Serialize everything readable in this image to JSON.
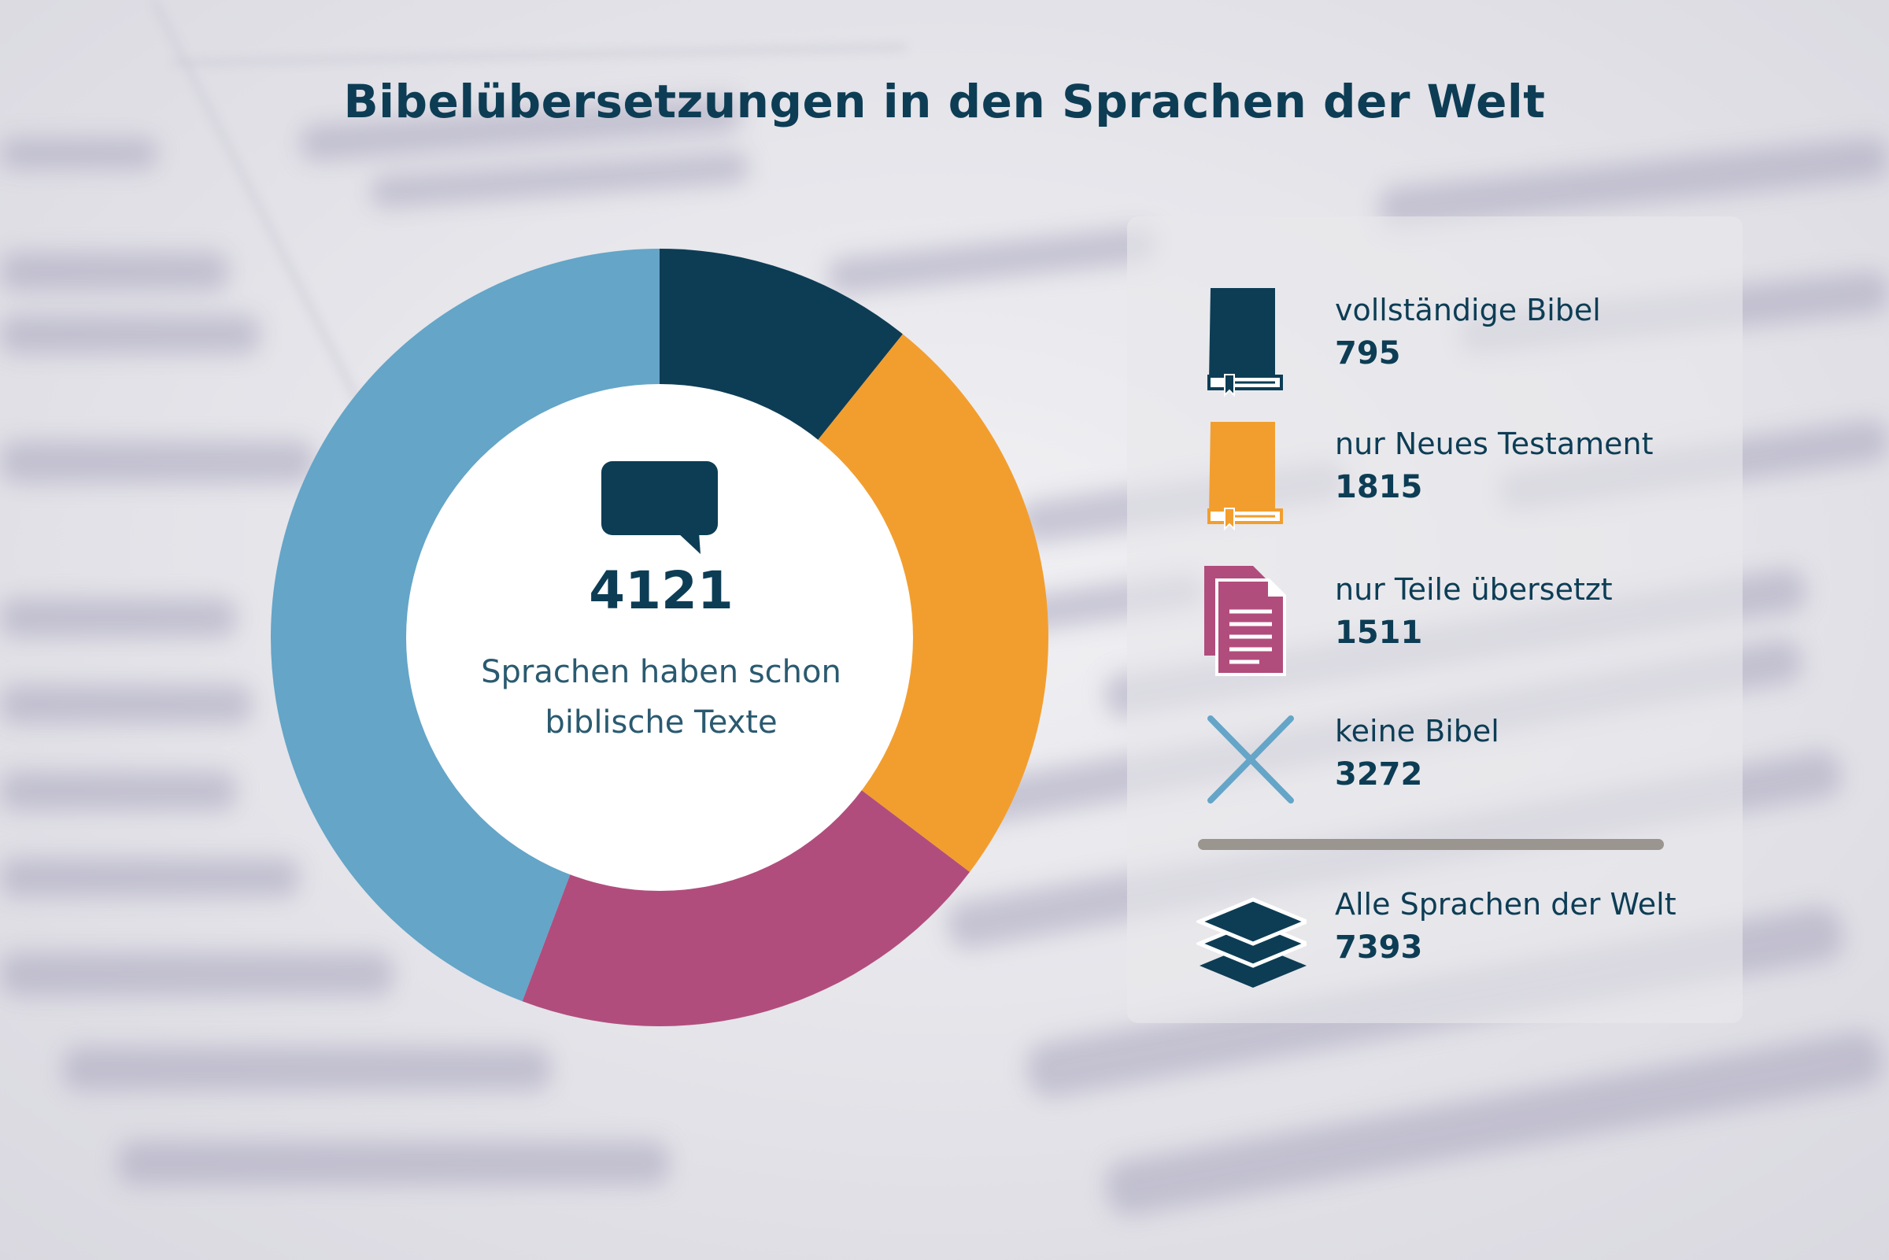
{
  "chart_data": {
    "type": "pie",
    "title": "Bibelübersetzungen in den Sprachen der Welt",
    "center": {
      "value": "4121",
      "text_line1": "Sprachen haben schon",
      "text_line2": "biblische Texte"
    },
    "series": [
      {
        "name": "vollständige Bibel",
        "value": 795,
        "color": "#0d3d55",
        "icon": "book-icon"
      },
      {
        "name": "nur Neues Testament",
        "value": 1815,
        "color": "#f29e2e",
        "icon": "book-icon"
      },
      {
        "name": "nur Teile übersetzt",
        "value": 1511,
        "color": "#b14d7c",
        "icon": "documents-icon"
      },
      {
        "name": "keine Bibel",
        "value": 3272,
        "color": "#64a5c8",
        "icon": "cross-icon"
      }
    ],
    "total": {
      "name": "Alle Sprachen der Welt",
      "value": 7393,
      "icon": "layers-icon",
      "color": "#0d3d55"
    },
    "legend": "right"
  }
}
